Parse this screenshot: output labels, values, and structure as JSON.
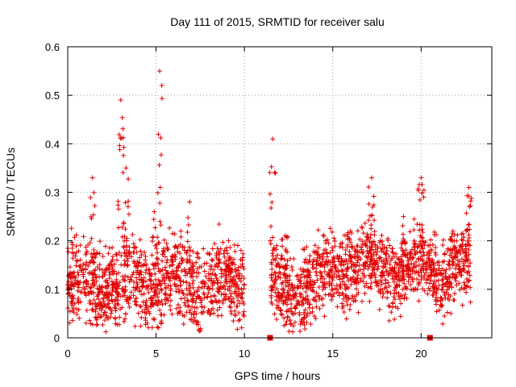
{
  "chart_data": {
    "type": "scatter",
    "title": "Day 111 of 2015, SRMTID for receiver salu",
    "xlabel": "GPS time / hours",
    "ylabel": "SRMTID / TECUs",
    "xlim": [
      0,
      24
    ],
    "ylim": [
      0,
      0.6
    ],
    "x_ticks": [
      0,
      5,
      10,
      15,
      20
    ],
    "y_ticks": [
      0,
      0.1,
      0.2,
      0.3,
      0.4,
      0.5,
      0.6
    ],
    "x_tick_labels": [
      "0",
      "5",
      "10",
      "15",
      "20"
    ],
    "y_tick_labels": [
      "0",
      "0.1",
      "0.2",
      "0.3",
      "0.4",
      "0.5",
      "0.6"
    ],
    "grid": true,
    "marker": "+",
    "series_color": "#e00000",
    "series": [
      {
        "name": "SRMTID",
        "segments": [
          {
            "x_start": 0.0,
            "x_end": 10.0,
            "base": 0.11,
            "spread": 0.06,
            "peaks": [
              [
                1.4,
                0.33
              ],
              [
                3.0,
                0.49
              ],
              [
                3.3,
                0.35
              ],
              [
                4.9,
                0.26
              ],
              [
                5.2,
                0.55
              ],
              [
                6.9,
                0.28
              ],
              [
                9.1,
                0.2
              ]
            ]
          },
          {
            "x_start": 11.5,
            "x_end": 14.6,
            "base": 0.1,
            "spread": 0.06,
            "peaks": [
              [
                11.6,
                0.41
              ],
              [
                12.3,
                0.21
              ],
              [
                13.6,
                0.14
              ]
            ]
          },
          {
            "x_start": 14.6,
            "x_end": 22.8,
            "base": 0.14,
            "spread": 0.05,
            "peaks": [
              [
                16.0,
                0.22
              ],
              [
                17.2,
                0.33
              ],
              [
                19.0,
                0.25
              ],
              [
                20.0,
                0.33
              ],
              [
                21.8,
                0.22
              ],
              [
                22.7,
                0.31
              ]
            ]
          }
        ],
        "gap_markers": [
          {
            "x": 11.45,
            "y": 0.0
          },
          {
            "x": 20.5,
            "y": 0.0
          }
        ]
      }
    ]
  }
}
